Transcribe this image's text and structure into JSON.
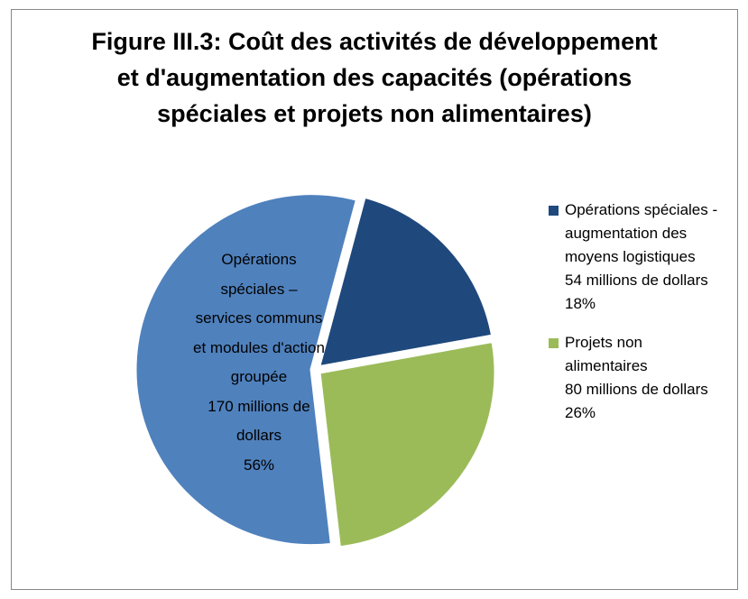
{
  "chart_data": {
    "type": "pie",
    "title": "Figure III.3: Coût des activités de développement et d'augmentation des capacités (opérations spéciales et projets non alimentaires)",
    "categories": [
      "Opérations spéciales - augmentation des moyens logistiques",
      "Projets non alimentaires",
      "Opérations spéciales – services communs et modules d'action groupée"
    ],
    "values": [
      18,
      26,
      56
    ],
    "value_labels": [
      "18%",
      "26%",
      "56%"
    ],
    "amount_labels": [
      "54 millions de dollars",
      "80 millions de dollars",
      "170 millions de dollars"
    ],
    "colors": [
      "#1f497d",
      "#9bbb59",
      "#4f81bd"
    ],
    "legend": "right"
  }
}
